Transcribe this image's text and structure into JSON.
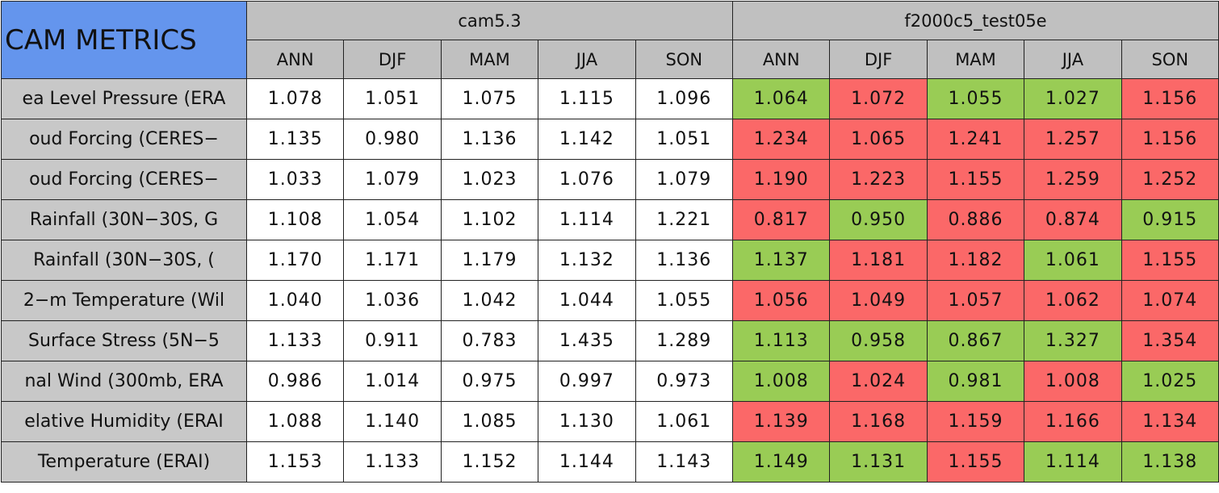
{
  "header": {
    "title": "CAM METRICS",
    "groups": [
      "cam5.3",
      "f2000c5_test05e"
    ],
    "seasons": [
      "ANN",
      "DJF",
      "MAM",
      "JJA",
      "SON"
    ]
  },
  "table": {
    "rows": [
      {
        "label": "ea Level Pressure (ERA",
        "values": [
          "1.078",
          "1.051",
          "1.075",
          "1.115",
          "1.096",
          "1.064",
          "1.072",
          "1.055",
          "1.027",
          "1.156"
        ],
        "colors": [
          "#99cc55",
          "#fb6868",
          "#99cc55",
          "#99cc55",
          "#fb6868"
        ]
      },
      {
        "label": "oud Forcing (CERES−",
        "values": [
          "1.135",
          "0.980",
          "1.136",
          "1.142",
          "1.051",
          "1.234",
          "1.065",
          "1.241",
          "1.257",
          "1.156"
        ],
        "colors": [
          "#fb6868",
          "#fb6868",
          "#fb6868",
          "#fb6868",
          "#fb6868"
        ]
      },
      {
        "label": "oud Forcing (CERES−",
        "values": [
          "1.033",
          "1.079",
          "1.023",
          "1.076",
          "1.079",
          "1.190",
          "1.223",
          "1.155",
          "1.259",
          "1.252"
        ],
        "colors": [
          "#fb6868",
          "#fb6868",
          "#fb6868",
          "#fb6868",
          "#fb6868"
        ]
      },
      {
        "label": "Rainfall (30N−30S, G",
        "values": [
          "1.108",
          "1.054",
          "1.102",
          "1.114",
          "1.221",
          "0.817",
          "0.950",
          "0.886",
          "0.874",
          "0.915"
        ],
        "colors": [
          "#fb6868",
          "#99cc55",
          "#fb6868",
          "#fb6868",
          "#99cc55"
        ]
      },
      {
        "label": "Rainfall (30N−30S, (",
        "values": [
          "1.170",
          "1.171",
          "1.179",
          "1.132",
          "1.136",
          "1.137",
          "1.181",
          "1.182",
          "1.061",
          "1.155"
        ],
        "colors": [
          "#99cc55",
          "#fb6868",
          "#fb6868",
          "#99cc55",
          "#fb6868"
        ]
      },
      {
        "label": "2−m Temperature (Wil",
        "values": [
          "1.040",
          "1.036",
          "1.042",
          "1.044",
          "1.055",
          "1.056",
          "1.049",
          "1.057",
          "1.062",
          "1.074"
        ],
        "colors": [
          "#fb6868",
          "#fb6868",
          "#fb6868",
          "#fb6868",
          "#fb6868"
        ]
      },
      {
        "label": "Surface Stress (5N−5",
        "values": [
          "1.133",
          "0.911",
          "0.783",
          "1.435",
          "1.289",
          "1.113",
          "0.958",
          "0.867",
          "1.327",
          "1.354"
        ],
        "colors": [
          "#99cc55",
          "#99cc55",
          "#99cc55",
          "#99cc55",
          "#fb6868"
        ]
      },
      {
        "label": "nal Wind (300mb, ERA",
        "values": [
          "0.986",
          "1.014",
          "0.975",
          "0.997",
          "0.973",
          "1.008",
          "1.024",
          "0.981",
          "1.008",
          "1.025"
        ],
        "colors": [
          "#99cc55",
          "#fb6868",
          "#99cc55",
          "#fb6868",
          "#99cc55"
        ]
      },
      {
        "label": "elative Humidity (ERAI",
        "values": [
          "1.088",
          "1.140",
          "1.085",
          "1.130",
          "1.061",
          "1.139",
          "1.168",
          "1.159",
          "1.166",
          "1.134"
        ],
        "colors": [
          "#fb6868",
          "#fb6868",
          "#fb6868",
          "#fb6868",
          "#fb6868"
        ]
      },
      {
        "label": "Temperature (ERAI)",
        "values": [
          "1.153",
          "1.133",
          "1.152",
          "1.144",
          "1.143",
          "1.149",
          "1.131",
          "1.155",
          "1.114",
          "1.138"
        ],
        "colors": [
          "#99cc55",
          "#99cc55",
          "#fb6868",
          "#99cc55",
          "#99cc55"
        ]
      }
    ]
  }
}
